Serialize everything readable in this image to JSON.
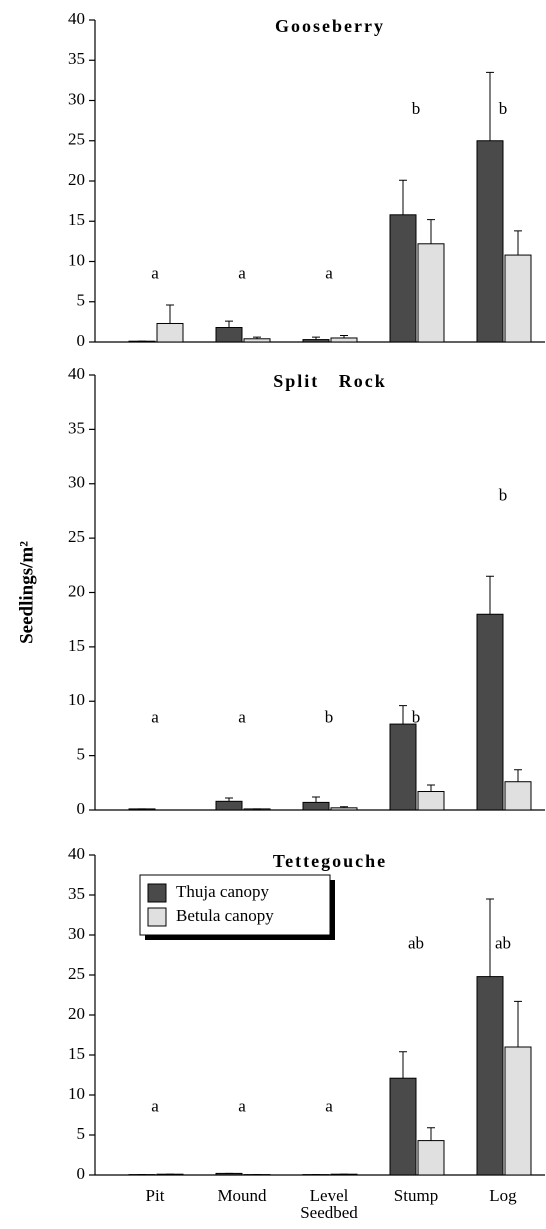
{
  "chart_data": [
    {
      "type": "bar",
      "title": "Gooseberry",
      "ylim": [
        0,
        40
      ],
      "yticks": [
        0,
        5,
        10,
        15,
        20,
        25,
        30,
        35,
        40
      ],
      "series": [
        {
          "color": "#4a4a4a",
          "values": [
            0.1,
            1.8,
            0.3,
            15.8,
            25
          ],
          "errors": [
            0,
            0.8,
            0.3,
            4.3,
            8.5
          ]
        },
        {
          "color": "#e0e0e0",
          "values": [
            2.3,
            0.4,
            0.5,
            12.2,
            10.8
          ],
          "errors": [
            2.3,
            0.2,
            0.3,
            3,
            3
          ]
        }
      ],
      "letters": [
        "a",
        "a",
        "a",
        "b",
        "b"
      ]
    },
    {
      "type": "bar",
      "title": "Split   Rock",
      "ylabel": "Seedlings/m²",
      "ylim": [
        0,
        40
      ],
      "yticks": [
        0,
        5,
        10,
        15,
        20,
        25,
        30,
        35,
        40
      ],
      "series": [
        {
          "color": "#4a4a4a",
          "values": [
            0.1,
            0.8,
            0.7,
            7.9,
            18
          ],
          "errors": [
            0,
            0.3,
            0.5,
            1.7,
            3.5
          ]
        },
        {
          "color": "#e0e0e0",
          "values": [
            0,
            0.1,
            0.2,
            1.7,
            2.6
          ],
          "errors": [
            0,
            0,
            0.1,
            0.6,
            1.1
          ]
        }
      ],
      "letters": [
        "a",
        "a",
        "b",
        "b",
        "b"
      ]
    },
    {
      "type": "bar",
      "title": "Tettegouche",
      "ylim": [
        0,
        40
      ],
      "yticks": [
        0,
        5,
        10,
        15,
        20,
        25,
        30,
        35,
        40
      ],
      "categories": [
        "Pit",
        "Mound",
        "Level Seedbed",
        "Stump",
        "Log"
      ],
      "series": [
        {
          "name": "Thuja canopy",
          "color": "#4a4a4a",
          "values": [
            0.05,
            0.2,
            0.05,
            12.1,
            24.8
          ],
          "errors": [
            0,
            0,
            0,
            3.3,
            9.7
          ]
        },
        {
          "name": "Betula canopy",
          "color": "#e0e0e0",
          "values": [
            0.1,
            0.05,
            0.1,
            4.3,
            16
          ],
          "errors": [
            0,
            0,
            0,
            1.6,
            5.7
          ]
        }
      ],
      "letters": [
        "a",
        "a",
        "a",
        "ab",
        "ab"
      ],
      "legend": "upper left"
    }
  ]
}
